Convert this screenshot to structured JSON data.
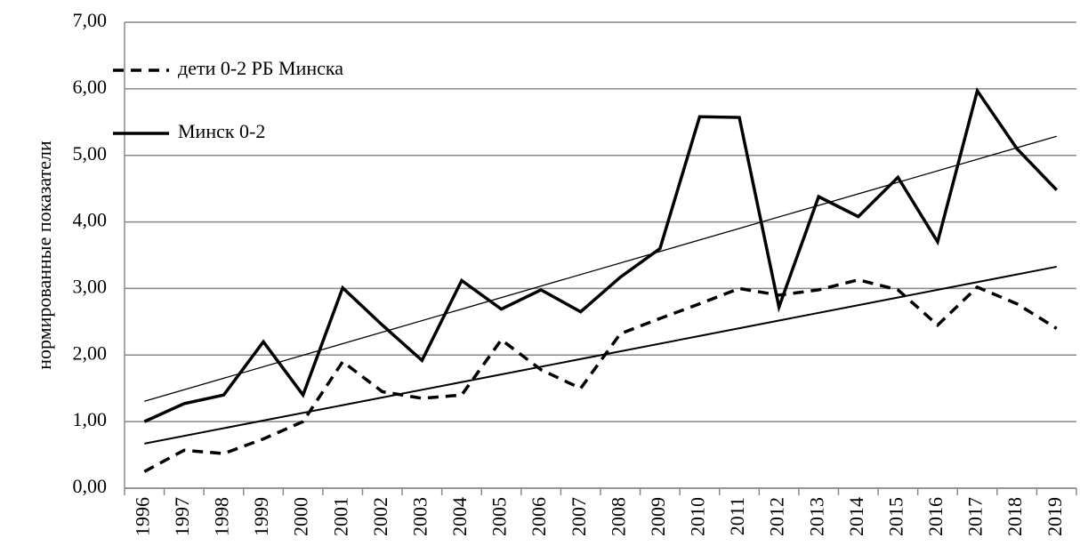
{
  "chart_data": {
    "type": "line",
    "y_label": "нормированные показатели",
    "categories": [
      "1996",
      "1997",
      "1998",
      "1999",
      "2000",
      "2001",
      "2002",
      "2003",
      "2004",
      "2005",
      "2006",
      "2007",
      "2008",
      "2009",
      "2010",
      "2011",
      "2012",
      "2013",
      "2014",
      "2015",
      "2016",
      "2017",
      "2018",
      "2019"
    ],
    "series": [
      {
        "name": "дети 0-2 РБ Минска",
        "color": "#000000",
        "dash": true,
        "values": [
          0.25,
          0.57,
          0.52,
          0.74,
          1.0,
          1.9,
          1.45,
          1.35,
          1.4,
          2.23,
          1.78,
          1.5,
          2.32,
          2.55,
          2.77,
          3.0,
          2.9,
          2.98,
          3.13,
          2.98,
          2.45,
          3.02,
          2.77,
          2.4
        ]
      },
      {
        "name": "Минск 0-2",
        "color": "#000000",
        "dash": false,
        "values": [
          1.0,
          1.27,
          1.4,
          2.2,
          1.4,
          3.01,
          2.45,
          1.92,
          3.12,
          2.69,
          2.98,
          2.65,
          3.17,
          3.6,
          5.58,
          5.57,
          2.72,
          4.38,
          4.08,
          4.67,
          3.7,
          5.97,
          5.1,
          4.48
        ]
      }
    ],
    "trendline": true,
    "ylim": [
      0,
      7
    ],
    "yticks": [
      {
        "value": 0,
        "label": "0,00"
      },
      {
        "value": 1,
        "label": "1,00"
      },
      {
        "value": 2,
        "label": "2,00"
      },
      {
        "value": 3,
        "label": "3,00"
      },
      {
        "value": 4,
        "label": "4,00"
      },
      {
        "value": 5,
        "label": "5,00"
      },
      {
        "value": 6,
        "label": "6,00"
      },
      {
        "value": 7,
        "label": "7,00"
      }
    ],
    "grid": true
  }
}
